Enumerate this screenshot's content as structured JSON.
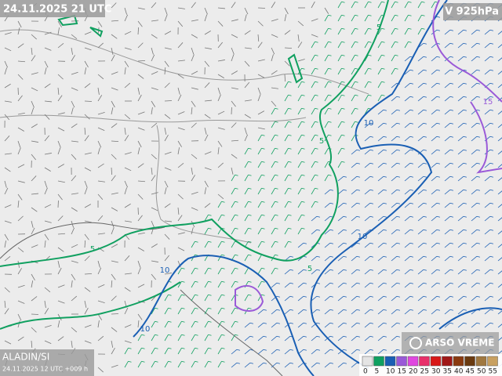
{
  "header": {
    "valid_time": "24.11.2025 21 UTC",
    "field": "V 925hPa"
  },
  "footer": {
    "model": "ALADIN/SI",
    "run": "24.11.2025 12 UTC +009 h",
    "logo": "ARSO VREME"
  },
  "contour_labels": [
    "5",
    "5",
    "5",
    "5",
    "10",
    "10",
    "10",
    "10",
    "15"
  ],
  "legend": [
    {
      "label": "0",
      "color": "#e4e4e4"
    },
    {
      "label": "5",
      "color": "#10a060"
    },
    {
      "label": "10",
      "color": "#1a5fb4"
    },
    {
      "label": "15",
      "color": "#9a5ad8"
    },
    {
      "label": "20",
      "color": "#e048e0"
    },
    {
      "label": "25",
      "color": "#e8306a"
    },
    {
      "label": "30",
      "color": "#d81818"
    },
    {
      "label": "35",
      "color": "#a01818"
    },
    {
      "label": "40",
      "color": "#8a3a10"
    },
    {
      "label": "45",
      "color": "#6a3a10"
    },
    {
      "label": "50",
      "color": "#a07840"
    },
    {
      "label": "55",
      "color": "#c8a060"
    }
  ]
}
